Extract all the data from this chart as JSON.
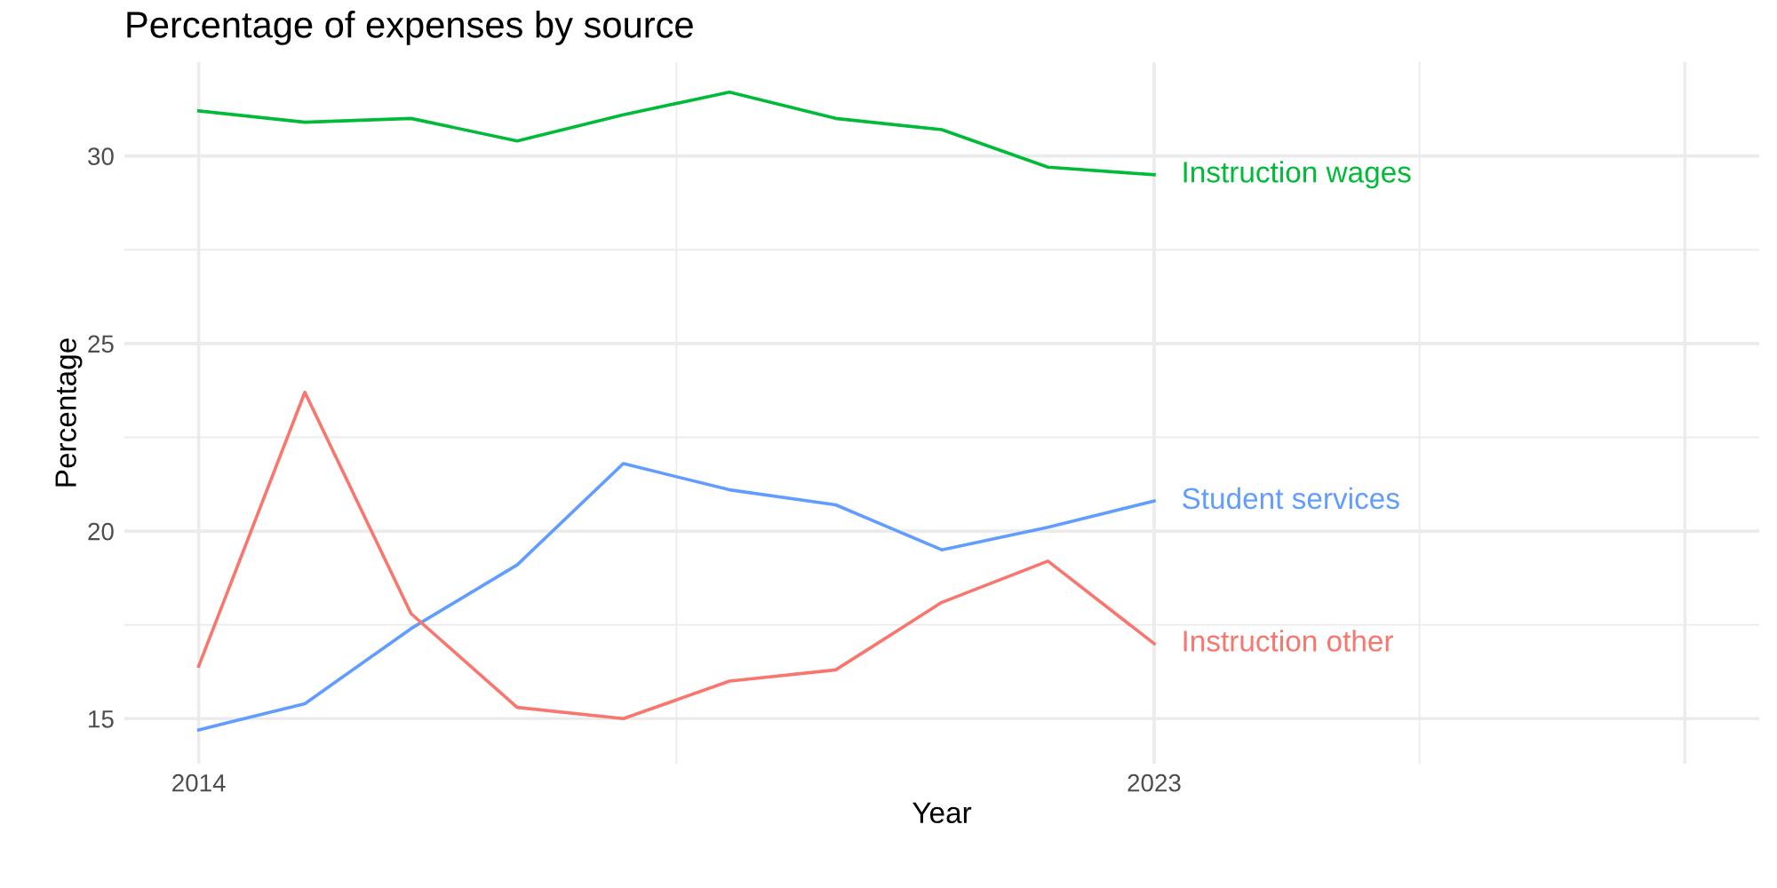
{
  "chart_data": {
    "type": "line",
    "title": "Percentage of expenses by source",
    "xlabel": "Year",
    "ylabel": "Percentage",
    "x": [
      2014,
      2015,
      2016,
      2017,
      2018,
      2019,
      2020,
      2021,
      2022,
      2023
    ],
    "series": [
      {
        "name": "Instruction wages",
        "color": "#00ba38",
        "values": [
          31.2,
          30.9,
          31.0,
          30.4,
          31.1,
          31.7,
          31.0,
          30.7,
          29.7,
          29.5
        ]
      },
      {
        "name": "Student services",
        "color": "#619cff",
        "values": [
          14.7,
          15.4,
          17.4,
          19.1,
          21.8,
          21.1,
          20.7,
          19.5,
          20.1,
          20.8
        ]
      },
      {
        "name": "Instruction other",
        "color": "#f8766d",
        "values": [
          16.4,
          23.7,
          17.8,
          15.3,
          15.0,
          16.0,
          16.3,
          18.1,
          19.2,
          17.0
        ]
      }
    ],
    "xlim": [
      2013.3,
      2028.7
    ],
    "xticks": [
      2014,
      2023,
      {
        "value": 2028,
        "label": null
      }
    ],
    "ylim": [
      13.8,
      32.5
    ],
    "yticks": [
      15,
      20,
      25,
      30
    ],
    "grid": true,
    "legend": false,
    "line_style": "solid",
    "marker": "none"
  }
}
